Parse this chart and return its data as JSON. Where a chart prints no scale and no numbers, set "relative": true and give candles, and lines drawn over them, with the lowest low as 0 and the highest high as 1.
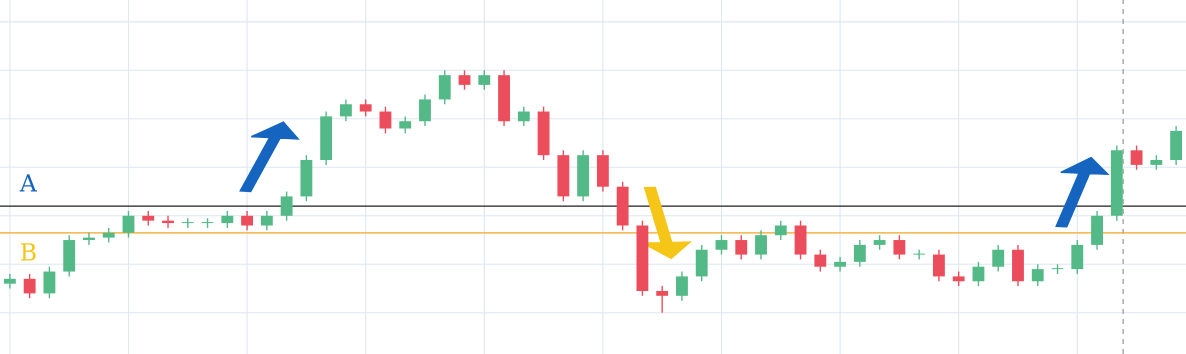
{
  "chart_data": {
    "type": "candlestick",
    "relative": true,
    "grid": true,
    "categories": [
      null,
      null,
      null,
      null,
      null,
      null,
      null,
      null,
      null,
      null,
      null,
      null,
      null,
      null,
      null,
      null,
      null,
      null,
      null,
      null,
      null,
      null,
      null,
      null,
      null,
      null,
      null,
      null,
      null,
      null,
      null,
      null,
      null,
      null,
      null,
      null,
      null,
      null,
      null,
      null,
      null,
      null,
      null,
      null,
      null,
      null,
      null,
      null,
      null,
      null,
      null,
      null,
      null,
      null,
      null,
      null,
      null,
      null,
      null,
      null
    ],
    "colors": [
      "#53b987",
      "#eb4d5c",
      "#53b987",
      "#53b987",
      "#53b987",
      "#53b987",
      "#53b987",
      "#eb4d5c",
      "#eb4d5c",
      "#53b987",
      "#53b987",
      "#53b987",
      "#eb4d5c",
      "#53b987",
      "#53b987",
      "#53b987",
      "#53b987",
      "#53b987",
      "#eb4d5c",
      "#eb4d5c",
      "#53b987",
      "#53b987",
      "#53b987",
      "#eb4d5c",
      "#53b987",
      "#eb4d5c",
      "#53b987",
      "#eb4d5c",
      "#eb4d5c",
      "#53b987",
      "#eb4d5c",
      "#eb4d5c",
      "#eb4d5c",
      "#eb4d5c",
      "#53b987",
      "#53b987",
      "#53b987",
      "#eb4d5c",
      "#53b987",
      "#53b987",
      "#eb4d5c",
      "#eb4d5c",
      "#53b987",
      "#53b987",
      "#53b987",
      "#eb4d5c",
      "#53b987",
      "#eb4d5c",
      "#eb4d5c",
      "#53b987",
      "#53b987",
      "#eb4d5c",
      "#53b987",
      "#53b987",
      "#53b987",
      "#53b987",
      "#53b987",
      "#eb4d5c",
      "#53b987",
      "#53b987"
    ],
    "ohlc": [
      [
        0.12,
        0.16,
        0.1,
        0.14
      ],
      [
        0.14,
        0.16,
        0.06,
        0.08
      ],
      [
        0.08,
        0.19,
        0.06,
        0.17
      ],
      [
        0.17,
        0.32,
        0.15,
        0.3
      ],
      [
        0.3,
        0.33,
        0.28,
        0.31
      ],
      [
        0.31,
        0.35,
        0.29,
        0.33
      ],
      [
        0.33,
        0.42,
        0.31,
        0.4
      ],
      [
        0.4,
        0.42,
        0.36,
        0.38
      ],
      [
        0.38,
        0.4,
        0.35,
        0.37
      ],
      [
        0.37,
        0.39,
        0.35,
        0.37
      ],
      [
        0.37,
        0.39,
        0.35,
        0.37
      ],
      [
        0.37,
        0.42,
        0.35,
        0.4
      ],
      [
        0.4,
        0.42,
        0.34,
        0.36
      ],
      [
        0.36,
        0.42,
        0.34,
        0.4
      ],
      [
        0.4,
        0.5,
        0.38,
        0.48
      ],
      [
        0.48,
        0.65,
        0.46,
        0.63
      ],
      [
        0.63,
        0.83,
        0.61,
        0.81
      ],
      [
        0.81,
        0.88,
        0.79,
        0.86
      ],
      [
        0.86,
        0.88,
        0.81,
        0.83
      ],
      [
        0.83,
        0.85,
        0.74,
        0.76
      ],
      [
        0.76,
        0.81,
        0.74,
        0.79
      ],
      [
        0.79,
        0.9,
        0.77,
        0.88
      ],
      [
        0.88,
        1.0,
        0.86,
        0.98
      ],
      [
        0.98,
        1.0,
        0.92,
        0.94
      ],
      [
        0.94,
        1.0,
        0.92,
        0.98
      ],
      [
        0.98,
        1.0,
        0.77,
        0.79
      ],
      [
        0.79,
        0.85,
        0.77,
        0.83
      ],
      [
        0.83,
        0.85,
        0.63,
        0.65
      ],
      [
        0.65,
        0.67,
        0.46,
        0.48
      ],
      [
        0.48,
        0.67,
        0.46,
        0.65
      ],
      [
        0.65,
        0.67,
        0.5,
        0.52
      ],
      [
        0.52,
        0.54,
        0.34,
        0.36
      ],
      [
        0.36,
        0.38,
        0.07,
        0.09
      ],
      [
        0.09,
        0.11,
        0.0,
        0.07
      ],
      [
        0.07,
        0.17,
        0.05,
        0.15
      ],
      [
        0.15,
        0.28,
        0.13,
        0.26
      ],
      [
        0.26,
        0.32,
        0.24,
        0.3
      ],
      [
        0.3,
        0.32,
        0.22,
        0.24
      ],
      [
        0.24,
        0.34,
        0.22,
        0.32
      ],
      [
        0.32,
        0.38,
        0.3,
        0.36
      ],
      [
        0.36,
        0.38,
        0.22,
        0.24
      ],
      [
        0.24,
        0.26,
        0.17,
        0.19
      ],
      [
        0.19,
        0.23,
        0.17,
        0.21
      ],
      [
        0.21,
        0.3,
        0.19,
        0.28
      ],
      [
        0.28,
        0.32,
        0.26,
        0.3
      ],
      [
        0.3,
        0.32,
        0.22,
        0.24
      ],
      [
        0.24,
        0.26,
        0.22,
        0.24
      ],
      [
        0.24,
        0.26,
        0.13,
        0.15
      ],
      [
        0.15,
        0.17,
        0.11,
        0.13
      ],
      [
        0.13,
        0.21,
        0.11,
        0.19
      ],
      [
        0.19,
        0.28,
        0.17,
        0.26
      ],
      [
        0.26,
        0.28,
        0.11,
        0.13
      ],
      [
        0.13,
        0.2,
        0.11,
        0.18
      ],
      [
        0.18,
        0.2,
        0.16,
        0.18
      ],
      [
        0.18,
        0.3,
        0.16,
        0.28
      ],
      [
        0.28,
        0.42,
        0.26,
        0.4
      ],
      [
        0.4,
        0.69,
        0.38,
        0.67
      ],
      [
        0.67,
        0.69,
        0.59,
        0.61
      ],
      [
        0.61,
        0.65,
        0.59,
        0.63
      ],
      [
        0.63,
        0.77,
        0.61,
        0.75
      ]
    ],
    "ref_lines": [
      {
        "axis": "y",
        "value": 0.44,
        "label": "A",
        "color": "#1f1f1f"
      },
      {
        "axis": "y",
        "value": 0.33,
        "label": "B",
        "color": "#f5a623"
      }
    ]
  }
}
